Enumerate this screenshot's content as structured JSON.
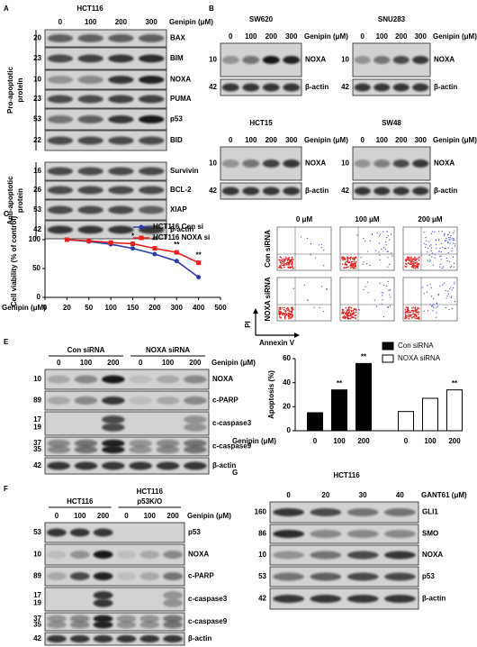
{
  "A": {
    "label": "A",
    "cell": "HCT116",
    "lanes": [
      "0",
      "100",
      "200",
      "300"
    ],
    "treatment": "Genipin (μM)",
    "row_groups": [
      [
        "Pro-apoptotic",
        "protein"
      ],
      [
        "Anti-apoptotic",
        "protein"
      ]
    ],
    "rows": [
      {
        "mw": [
          "20"
        ],
        "protein": "BAX"
      },
      {
        "mw": [
          "23"
        ],
        "protein": "BIM"
      },
      {
        "mw": [
          "10"
        ],
        "protein": "NOXA"
      },
      {
        "mw": [
          "23"
        ],
        "protein": "PUMA"
      },
      {
        "mw": [
          "53"
        ],
        "protein": "p53"
      },
      {
        "mw": [
          "22"
        ],
        "protein": "BID"
      },
      {
        "mw": [
          "16"
        ],
        "protein": "Survivin"
      },
      {
        "mw": [
          "26"
        ],
        "protein": "BCL-2"
      },
      {
        "mw": [
          "53"
        ],
        "protein": "XIAP"
      },
      {
        "mw": [
          "42"
        ],
        "protein": "β-actin"
      }
    ]
  },
  "B": {
    "label": "B",
    "blots": [
      {
        "cell": "SW620",
        "lanes": [
          "0",
          "100",
          "200",
          "300"
        ],
        "treatment": "Genipin (μM)",
        "rows": [
          {
            "mw": [
              "10"
            ],
            "protein": "NOXA"
          },
          {
            "mw": [
              "42"
            ],
            "protein": "β-actin"
          }
        ]
      },
      {
        "cell": "SNU283",
        "lanes": [
          "0",
          "100",
          "200",
          "300"
        ],
        "treatment": "Genipin (μM)",
        "rows": [
          {
            "mw": [
              "10"
            ],
            "protein": "NOXA"
          },
          {
            "mw": [
              "42"
            ],
            "protein": "β-actin"
          }
        ]
      },
      {
        "cell": "HCT15",
        "lanes": [
          "0",
          "100",
          "200",
          "300"
        ],
        "treatment": "Genipin (μM)",
        "rows": [
          {
            "mw": [
              "10"
            ],
            "protein": "NOXA"
          },
          {
            "mw": [
              "42"
            ],
            "protein": "β-actin"
          }
        ]
      },
      {
        "cell": "SW48",
        "lanes": [
          "0",
          "100",
          "200",
          "300"
        ],
        "treatment": "Genipin (μM)",
        "rows": [
          {
            "mw": [
              "10"
            ],
            "protein": "NOXA"
          },
          {
            "mw": [
              "42"
            ],
            "protein": "β-actin"
          }
        ]
      }
    ]
  },
  "chart_data": [
    {
      "type": "line",
      "label": "C",
      "xlabel": "Genipin (μM)",
      "ylabel": "Cell viability (% of control)",
      "categories": [
        "0",
        "20",
        "50",
        "100",
        "150",
        "200",
        "300",
        "400",
        "500"
      ],
      "series": [
        {
          "name": "HCT116 Con si",
          "color": "#2b3aa8",
          "values": [
            null,
            100,
            97,
            92,
            85,
            75,
            63,
            35,
            null
          ]
        },
        {
          "name": "HCT116 NOXA si",
          "color": "#e8201c",
          "values": [
            null,
            100,
            98,
            95,
            93,
            85,
            78,
            60,
            null
          ]
        }
      ],
      "significance": [
        null,
        null,
        null,
        null,
        "*",
        "**",
        "**",
        "**",
        null
      ],
      "ylim": [
        0,
        125
      ],
      "yticks": [
        0,
        50,
        100
      ]
    },
    {
      "type": "bar",
      "label": "D",
      "xlabel": "Genipin (μM)",
      "ylabel": "Apoptosis (%)",
      "categories": [
        "0",
        "100",
        "200",
        "0",
        "100",
        "200"
      ],
      "series": [
        {
          "name": "Con siRNA",
          "color": "#000000",
          "values": [
            15,
            34,
            56,
            null,
            null,
            null
          ],
          "significance": [
            null,
            "**",
            "**",
            null,
            null,
            null
          ]
        },
        {
          "name": "NOXA siRNA",
          "color": "#ffffff",
          "values": [
            null,
            null,
            null,
            16,
            27,
            34
          ],
          "significance": [
            null,
            null,
            null,
            null,
            null,
            "**"
          ]
        }
      ],
      "ylim": [
        0,
        60
      ],
      "yticks": [
        0,
        20,
        40,
        60
      ]
    }
  ],
  "flow": {
    "columns": [
      "0 μM",
      "100 μM",
      "200 μM"
    ],
    "rows": [
      "Con siRNA",
      "NOXA siRNA"
    ],
    "ylabel": "PI",
    "xlabel": "Annexin V"
  },
  "E": {
    "label": "E",
    "lane_groups": [
      [
        "Con siRNA"
      ],
      [
        "NOXA siRNA"
      ]
    ],
    "lanes": [
      "0",
      "100",
      "200",
      "0",
      "100",
      "200"
    ],
    "treatment": "Genipin (μM)",
    "rows": [
      {
        "mw": [
          "10"
        ],
        "protein": "NOXA"
      },
      {
        "mw": [
          "89"
        ],
        "protein": "c-PARP"
      },
      {
        "mw": [
          "17",
          "19"
        ],
        "protein": "c-caspase3"
      },
      {
        "mw": [
          "37",
          "35"
        ],
        "protein": "c-caspase9"
      },
      {
        "mw": [
          "42"
        ],
        "protein": "β-actin"
      }
    ]
  },
  "F": {
    "label": "F",
    "lane_groups": [
      [
        "HCT116"
      ],
      [
        "HCT116",
        "p53K/O"
      ]
    ],
    "lanes": [
      "0",
      "100",
      "200",
      "0",
      "100",
      "200"
    ],
    "treatment": "Genipin (μM)",
    "rows": [
      {
        "mw": [
          "53"
        ],
        "protein": "p53"
      },
      {
        "mw": [
          "10"
        ],
        "protein": "NOXA"
      },
      {
        "mw": [
          "89"
        ],
        "protein": "c-PARP"
      },
      {
        "mw": [
          "17",
          "19"
        ],
        "protein": "c-caspase3"
      },
      {
        "mw": [
          "37",
          "35"
        ],
        "protein": "c-caspase9"
      },
      {
        "mw": [
          "42"
        ],
        "protein": "β-actin"
      }
    ]
  },
  "G": {
    "label": "G",
    "cell": "HCT116",
    "lanes": [
      "0",
      "20",
      "30",
      "40"
    ],
    "treatment": "GANT61 (μM)",
    "rows": [
      {
        "mw": [
          "160"
        ],
        "protein": "GLI1"
      },
      {
        "mw": [
          "86"
        ],
        "protein": "SMO"
      },
      {
        "mw": [
          "10"
        ],
        "protein": "NOXA"
      },
      {
        "mw": [
          "53"
        ],
        "protein": "p53"
      },
      {
        "mw": [
          "42"
        ],
        "protein": "β-actin"
      }
    ]
  }
}
